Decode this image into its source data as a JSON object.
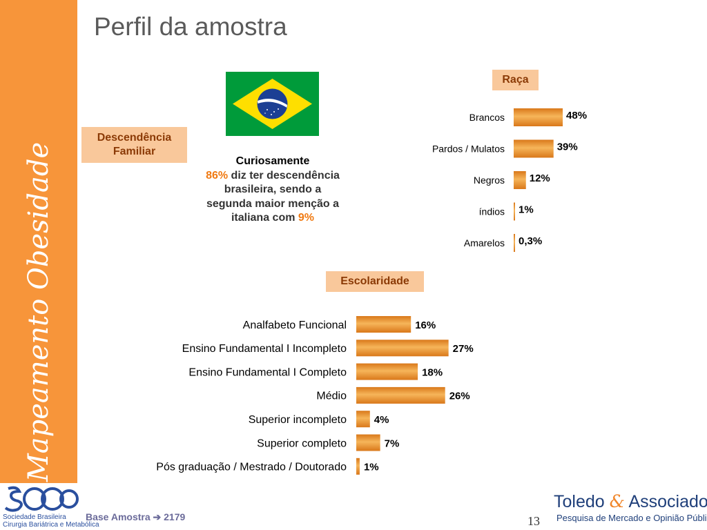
{
  "slide": {
    "title": "Perfil da amostra",
    "sidebar_text": "Mapeamento Obesidade",
    "descendencia_label": "Descendência Familiar",
    "raca_label": "Raça",
    "escolaridade_label": "Escolaridade",
    "curiosity": {
      "lead": "Curiosamente",
      "pct1": "86%",
      "text1": " diz ter descendência brasileira, sendo a segunda maior menção a italiana com ",
      "pct2": "9%"
    },
    "footer": {
      "logo_line1": "Sociedade Brasileira",
      "logo_line2": "Cirurgia Bariátrica e Metabólica",
      "base_text": "Base Amostra ➔ 2179",
      "page_number": "13",
      "brand_left": "Toledo",
      "brand_amp": "&",
      "brand_right": "Associados",
      "brand_sub": "Pesquisa de Mercado e Opinião Pública"
    }
  },
  "colors": {
    "sidebar": "#f7953a",
    "tag_bg": "#f9c89b",
    "tag_text": "#8b3a06",
    "bar_light": "#f6b55a",
    "bar_dark": "#d9781a",
    "highlight": "#f07a12"
  },
  "chart_data": [
    {
      "type": "bar",
      "orientation": "horizontal",
      "title": "Raça",
      "categories": [
        "Brancos",
        "Pardos / Mulatos",
        "Negros",
        "índios",
        "Amarelos"
      ],
      "values": [
        48,
        39,
        12,
        1,
        0.3
      ],
      "labels": [
        "48%",
        "39%",
        "12%",
        "1%",
        "0,3%"
      ]
    },
    {
      "type": "bar",
      "orientation": "horizontal",
      "title": "Escolaridade",
      "categories": [
        "Analfabeto Funcional",
        "Ensino Fundamental I Incompleto",
        "Ensino Fundamental I Completo",
        "Médio",
        "Superior incompleto",
        "Superior completo",
        "Pós graduação / Mestrado / Doutorado"
      ],
      "values": [
        16,
        27,
        18,
        26,
        4,
        7,
        1
      ],
      "labels": [
        "16%",
        "27%",
        "18%",
        "26%",
        "4%",
        "7%",
        "1%"
      ]
    }
  ]
}
